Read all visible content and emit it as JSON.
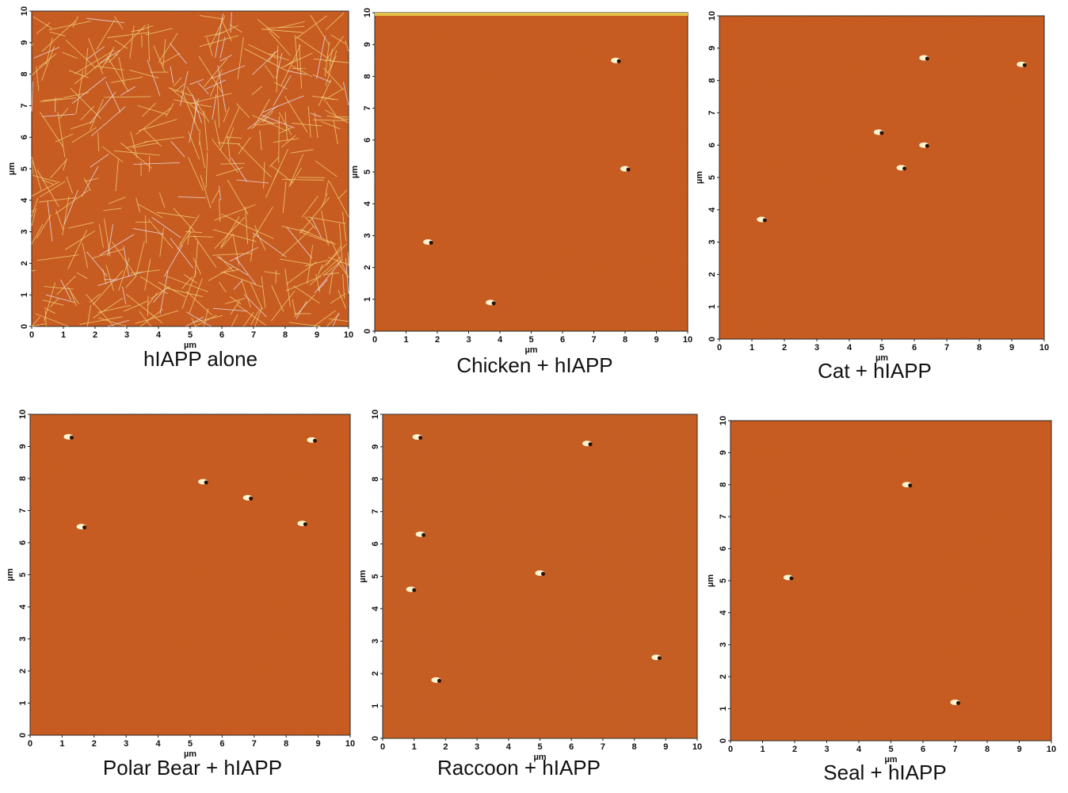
{
  "panels": [
    {
      "caption": "hIAPP alone"
    },
    {
      "caption": "Chicken + hIAPP"
    },
    {
      "caption": "Cat + hIAPP"
    },
    {
      "caption": "Polar Bear + hIAPP"
    },
    {
      "caption": "Raccoon + hIAPP"
    },
    {
      "caption": "Seal + hIAPP"
    }
  ],
  "axis": {
    "ticks": [
      0,
      1,
      2,
      3,
      4,
      5,
      6,
      7,
      8,
      9,
      10
    ],
    "label": "µm"
  }
}
